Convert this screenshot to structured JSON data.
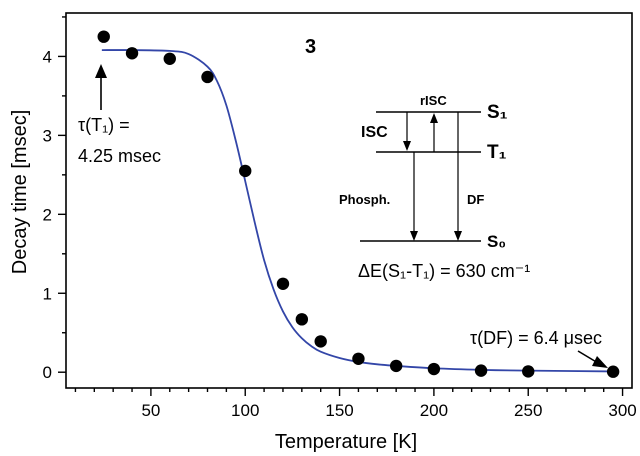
{
  "chart_data": {
    "type": "scatter",
    "xlabel": "Temperature  [K]",
    "ylabel": "Decay  time  [msec]",
    "xlim": [
      5,
      305
    ],
    "ylim": [
      -0.2,
      4.55
    ],
    "xticks": [
      50,
      100,
      150,
      200,
      250,
      300
    ],
    "yticks": [
      0,
      1,
      2,
      3,
      4
    ],
    "xtick_labels": [
      "50",
      "100",
      "150",
      "200",
      "250",
      "300"
    ],
    "ytick_labels": [
      "0",
      "1",
      "2",
      "3",
      "4"
    ],
    "grid": false,
    "series": [
      {
        "type": "scatter",
        "x": [
          25,
          40,
          60,
          80,
          100,
          120,
          130,
          140,
          160,
          180,
          200,
          225,
          250,
          295
        ],
        "y": [
          4.25,
          4.04,
          3.97,
          3.74,
          2.55,
          1.12,
          0.67,
          0.39,
          0.17,
          0.08,
          0.04,
          0.02,
          0.01,
          0.006
        ]
      },
      {
        "type": "line",
        "color": "#3346a8",
        "x": [
          24,
          40,
          60,
          70,
          80,
          85,
          90,
          95,
          100,
          105,
          110,
          115,
          120,
          125,
          130,
          135,
          140,
          150,
          160,
          170,
          180,
          200,
          225,
          250,
          295
        ],
        "y": [
          4.08,
          4.08,
          4.07,
          4.03,
          3.87,
          3.69,
          3.38,
          2.93,
          2.42,
          1.9,
          1.42,
          1.05,
          0.77,
          0.57,
          0.43,
          0.33,
          0.26,
          0.18,
          0.13,
          0.1,
          0.08,
          0.05,
          0.03,
          0.02,
          0.01
        ]
      }
    ],
    "compound_label": "3",
    "annotations": [
      {
        "text_lines": [
          "τ(T₁) =",
          "4.25 msec"
        ],
        "arrow_to": {
          "x": 25,
          "y": 4.1
        }
      },
      {
        "text": "τ(DF) = 6.4 μsec",
        "arrow_to": {
          "x": 292,
          "y": 0.05
        }
      }
    ],
    "energy_diagram": {
      "levels": [
        "S₁",
        "T₁",
        "S₀"
      ],
      "transitions": [
        "rISC",
        "ISC",
        "Phosph.",
        "DF"
      ],
      "energy_gap": "ΔE(S₁-T₁) = 630 cm⁻¹"
    }
  }
}
